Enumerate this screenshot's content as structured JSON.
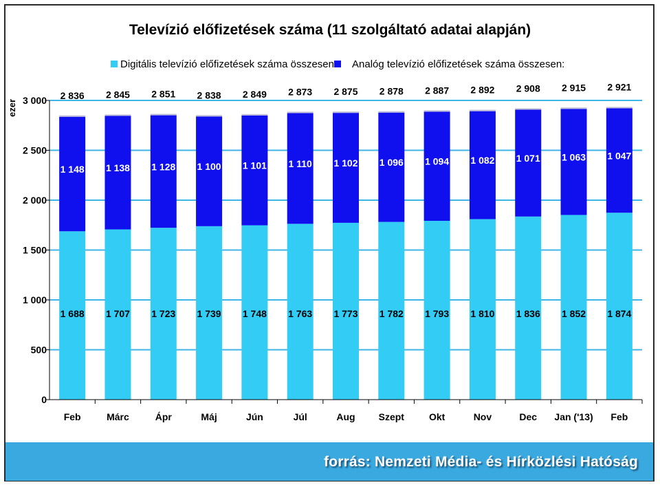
{
  "chart_data": {
    "type": "bar",
    "stacked": true,
    "title": "Televízió előfizetések száma (11 szolgáltató adatai alapján)",
    "ylabel": "ezer",
    "xlabel": "",
    "ylim": [
      0,
      3000
    ],
    "yticks": [
      0,
      500,
      1000,
      1500,
      2000,
      2500,
      3000
    ],
    "ytick_labels": [
      "0",
      "500",
      "1 000",
      "1 500",
      "2 000",
      "2 500",
      "3 000"
    ],
    "grid": true,
    "legend_position": "top",
    "categories": [
      "Feb",
      "Márc",
      "Ápr",
      "Máj",
      "Jún",
      "Júl",
      "Aug",
      "Szept",
      "Okt",
      "Nov",
      "Dec",
      "Jan ('13)",
      "Feb"
    ],
    "series": [
      {
        "name": "Digitális televízió előfizetések száma összesen:",
        "color": "#33ccf5",
        "values": [
          1688,
          1707,
          1723,
          1739,
          1748,
          1763,
          1773,
          1782,
          1793,
          1810,
          1836,
          1852,
          1874
        ],
        "labels": [
          "1 688",
          "1 707",
          "1 723",
          "1 739",
          "1 748",
          "1 763",
          "1 773",
          "1 782",
          "1 793",
          "1 810",
          "1 836",
          "1 852",
          "1 874"
        ]
      },
      {
        "name": "Analóg televízió előfizetések száma összesen:",
        "color": "#1010ee",
        "values": [
          1148,
          1138,
          1128,
          1100,
          1101,
          1110,
          1102,
          1096,
          1094,
          1082,
          1071,
          1063,
          1047
        ],
        "labels": [
          "1 148",
          "1 138",
          "1 128",
          "1 100",
          "1 101",
          "1 110",
          "1 102",
          "1 096",
          "1 094",
          "1 082",
          "1 071",
          "1 063",
          "1 047"
        ]
      }
    ],
    "totals": [
      2836,
      2845,
      2851,
      2838,
      2849,
      2873,
      2875,
      2878,
      2887,
      2892,
      2908,
      2915,
      2921
    ],
    "total_labels": [
      "2 836",
      "2 845",
      "2 851",
      "2 838",
      "2 849",
      "2 873",
      "2 875",
      "2 878",
      "2 887",
      "2 892",
      "2 908",
      "2 915",
      "2 921"
    ]
  },
  "footer": {
    "source": "forrás: Nemzeti Média- és Hírközlési Hatóság",
    "color": "#3aa9df"
  }
}
